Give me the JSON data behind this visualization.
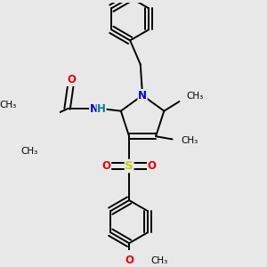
{
  "bg_color": "#e8e8e8",
  "bond_color": "#000000",
  "bond_width": 1.4,
  "atom_colors": {
    "N": "#0000ee",
    "O": "#ee0000",
    "S": "#cccc00",
    "H": "#008080",
    "C": "#000000"
  },
  "font_size": 8.5,
  "fig_size": [
    3.0,
    3.0
  ],
  "dpi": 100,
  "xlim": [
    -1.5,
    2.5
  ],
  "ylim": [
    -3.2,
    2.8
  ]
}
